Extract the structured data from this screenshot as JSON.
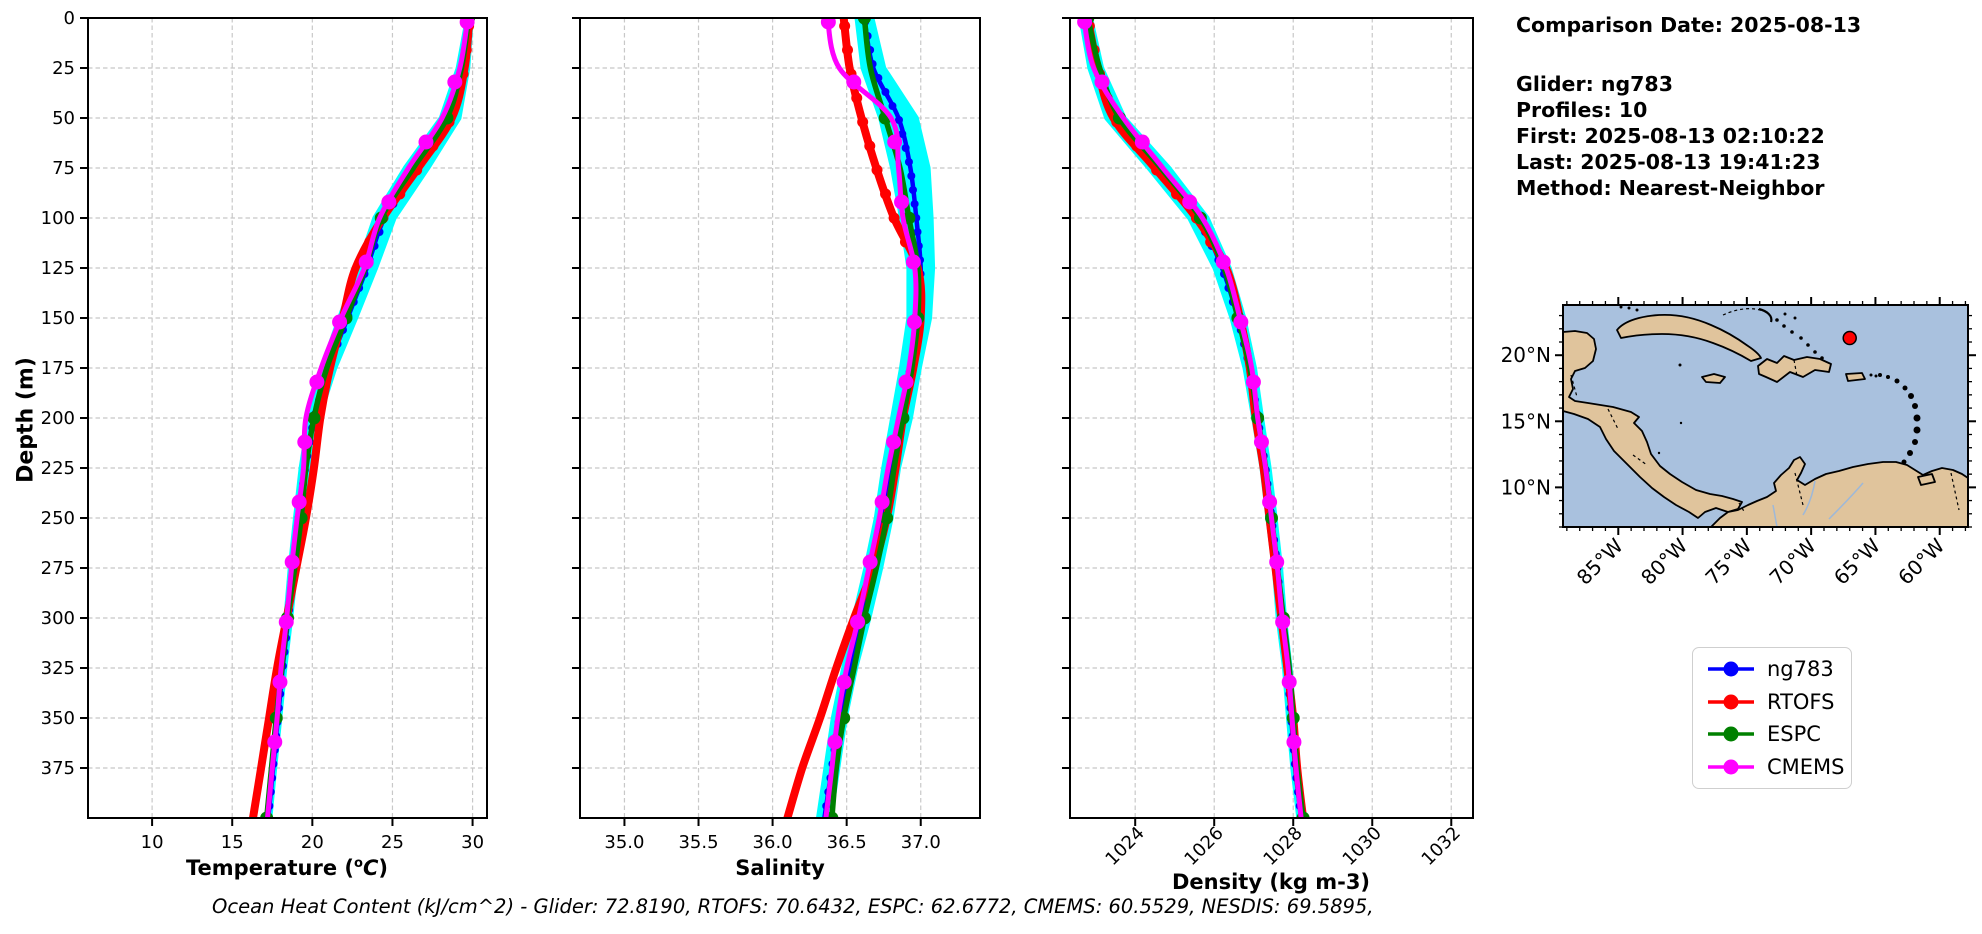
{
  "figure": {
    "bg": "#ffffff"
  },
  "info_panel": {
    "title": "Comparison Date: 2025-08-13",
    "lines": [
      "Glider: ng783",
      "Profiles: 10",
      "First: 2025-08-13 02:10:22",
      "Last: 2025-08-13 19:41:23",
      "Method: Nearest-Neighbor"
    ]
  },
  "legend": {
    "items": [
      {
        "label": "ng783",
        "color": "#0000ff"
      },
      {
        "label": "RTOFS",
        "color": "#ff0000"
      },
      {
        "label": "ESPC",
        "color": "#008000"
      },
      {
        "label": "CMEMS",
        "color": "#ff00ff"
      }
    ]
  },
  "footer": {
    "ohc_note": "Ocean Heat Content (kJ/cm^2) - Glider: 72.8190,  RTOFS: 70.6432,  ESPC: 62.6772,  CMEMS: 60.5529,  NESDIS: 69.5895,"
  },
  "map": {
    "ocean_color": "#a9c1de",
    "land_color": "#e0c49c",
    "coast_color": "#000000",
    "marker_color": "#ff0000",
    "lon_lim": [
      -89.3,
      -57.8
    ],
    "lat_lim": [
      7.0,
      23.8
    ],
    "lon_ticks": [
      -85,
      -80,
      -75,
      -70,
      -65,
      -60
    ],
    "lon_tick_labels": [
      "85°W",
      "80°W",
      "75°W",
      "70°W",
      "65°W",
      "60°W"
    ],
    "lat_ticks": [
      20,
      15,
      10
    ],
    "lat_tick_labels": [
      "20°N",
      "15°N",
      "10°N"
    ],
    "glider_location": {
      "lon": -67.0,
      "lat": 21.3
    }
  },
  "chart_data": {
    "type": "line",
    "ylabel": "Depth (m)",
    "ylim": [
      0,
      400
    ],
    "yticks": [
      0,
      25,
      50,
      75,
      100,
      125,
      150,
      175,
      200,
      225,
      250,
      275,
      300,
      325,
      350,
      375
    ],
    "depths": [
      0,
      25,
      50,
      75,
      100,
      125,
      150,
      175,
      200,
      225,
      250,
      275,
      300,
      325,
      350,
      375,
      400
    ],
    "grid": true,
    "grid_color": "#c8c8c8",
    "envelope_color": "#00ffff",
    "series_colors": {
      "ng783": "#0000ff",
      "RTOFS": "#ff0000",
      "ESPC": "#008000",
      "CMEMS": "#ff00ff"
    },
    "panels": [
      {
        "name": "temperature",
        "xlabel_parts": {
          "pre": "Temperature (",
          "sup": "o",
          "it": "C",
          "post": ")"
        },
        "xlim": [
          6.0,
          30.9
        ],
        "xticks": [
          10,
          15,
          20,
          25,
          30
        ],
        "xtick_labels": [
          "10",
          "15",
          "20",
          "25",
          "30"
        ],
        "rotate_xtick_labels": false,
        "series": {
          "ng783": [
            29.8,
            29.4,
            28.6,
            26.5,
            24.5,
            23.4,
            22.2,
            21.0,
            20.1,
            19.55,
            19.15,
            18.8,
            18.5,
            18.15,
            17.85,
            17.55,
            17.25
          ],
          "RTOFS": [
            29.8,
            29.5,
            28.7,
            26.6,
            24.4,
            22.7,
            21.9,
            21.1,
            20.5,
            20.1,
            19.6,
            19.0,
            18.4,
            17.8,
            17.3,
            16.8,
            16.3
          ],
          "ESPC": [
            29.75,
            29.3,
            28.4,
            26.3,
            24.3,
            23.3,
            22.1,
            20.9,
            20.1,
            19.6,
            19.3,
            18.9,
            18.45,
            18.1,
            17.75,
            17.45,
            17.15
          ],
          "CMEMS": [
            29.7,
            29.2,
            28.1,
            26.0,
            24.2,
            23.25,
            21.8,
            20.55,
            19.6,
            19.45,
            19.05,
            18.7,
            18.4,
            18.05,
            17.8,
            17.5,
            17.2
          ]
        },
        "envelope_halfwidth": [
          0.12,
          0.3,
          0.55,
          0.7,
          0.6,
          0.55,
          0.5,
          0.4,
          0.3,
          0.25,
          0.2,
          0.18,
          0.15,
          0.13,
          0.12,
          0.1,
          0.1
        ]
      },
      {
        "name": "salinity",
        "xlabel": "Salinity",
        "xlim": [
          34.7,
          37.4
        ],
        "xticks": [
          35.0,
          35.5,
          36.0,
          36.5,
          37.0
        ],
        "xtick_labels": [
          "35.0",
          "35.5",
          "36.0",
          "36.5",
          "37.0"
        ],
        "rotate_xtick_labels": false,
        "series": {
          "ng783": [
            36.62,
            36.68,
            36.85,
            36.93,
            36.97,
            37.0,
            36.99,
            36.93,
            36.87,
            36.8,
            36.75,
            36.68,
            36.6,
            36.52,
            36.45,
            36.4,
            36.35
          ],
          "RTOFS": [
            36.48,
            36.52,
            36.6,
            36.7,
            36.82,
            36.98,
            37.0,
            36.95,
            36.88,
            36.83,
            36.77,
            36.68,
            36.55,
            36.43,
            36.32,
            36.2,
            36.1
          ],
          "ESPC": [
            36.62,
            36.66,
            36.76,
            36.86,
            36.92,
            36.98,
            36.98,
            36.94,
            36.88,
            36.82,
            36.77,
            36.7,
            36.62,
            36.55,
            36.48,
            36.43,
            36.4
          ],
          "CMEMS": [
            36.37,
            36.45,
            36.8,
            36.85,
            36.88,
            36.96,
            36.96,
            36.92,
            36.85,
            36.78,
            36.72,
            36.65,
            36.58,
            36.5,
            36.44,
            36.4,
            36.36
          ]
        },
        "envelope_halfwidth": [
          0.05,
          0.07,
          0.12,
          0.12,
          0.1,
          0.08,
          0.07,
          0.06,
          0.06,
          0.05,
          0.05,
          0.05,
          0.05,
          0.04,
          0.04,
          0.04,
          0.04
        ]
      },
      {
        "name": "density",
        "xlabel": "Density (kg m-3)",
        "xlim": [
          1022.35,
          1032.55
        ],
        "xticks": [
          1024,
          1026,
          1028,
          1030,
          1032
        ],
        "xtick_labels": [
          "1024",
          "1026",
          "1028",
          "1030",
          "1032"
        ],
        "rotate_xtick_labels": true,
        "series": {
          "ng783": [
            1022.75,
            1023.0,
            1023.5,
            1024.6,
            1025.6,
            1026.2,
            1026.6,
            1026.9,
            1027.1,
            1027.3,
            1027.45,
            1027.6,
            1027.7,
            1027.85,
            1027.95,
            1028.05,
            1028.2
          ],
          "RTOFS": [
            1022.8,
            1023.05,
            1023.45,
            1024.5,
            1025.55,
            1026.3,
            1026.65,
            1026.9,
            1027.05,
            1027.25,
            1027.4,
            1027.55,
            1027.7,
            1027.85,
            1028.0,
            1028.1,
            1028.25
          ],
          "ESPC": [
            1022.8,
            1023.1,
            1023.6,
            1024.65,
            1025.65,
            1026.25,
            1026.6,
            1026.9,
            1027.1,
            1027.3,
            1027.45,
            1027.6,
            1027.75,
            1027.9,
            1028.0,
            1028.1,
            1028.25
          ],
          "CMEMS": [
            1022.7,
            1022.95,
            1023.7,
            1024.7,
            1025.7,
            1026.3,
            1026.65,
            1026.95,
            1027.1,
            1027.3,
            1027.45,
            1027.6,
            1027.72,
            1027.87,
            1027.97,
            1028.07,
            1028.2
          ]
        },
        "envelope_halfwidth": [
          0.12,
          0.15,
          0.22,
          0.25,
          0.22,
          0.18,
          0.15,
          0.12,
          0.1,
          0.09,
          0.09,
          0.08,
          0.08,
          0.07,
          0.07,
          0.06,
          0.06
        ]
      }
    ]
  }
}
